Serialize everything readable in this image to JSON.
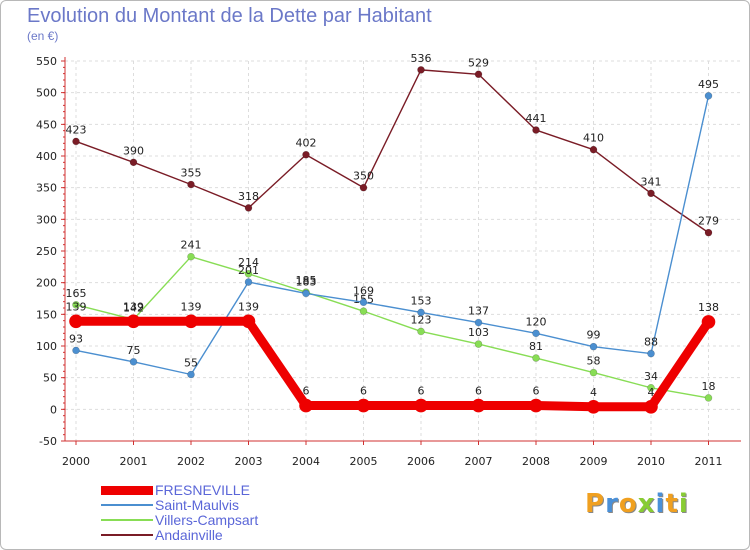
{
  "chart_data": {
    "type": "line",
    "title": "Evolution du Montant de la Dette par Habitant",
    "subtitle": "(en €)",
    "x": [
      "2000",
      "2001",
      "2002",
      "2003",
      "2004",
      "2005",
      "2006",
      "2007",
      "2008",
      "2009",
      "2010",
      "2011"
    ],
    "yticks": [
      -50,
      0,
      50,
      100,
      150,
      200,
      250,
      300,
      350,
      400,
      450,
      500,
      550
    ],
    "ylim": [
      -50,
      550
    ],
    "grid": true,
    "legend_position": "bottom-left",
    "series": [
      {
        "name": "Andainville",
        "color": "#7a1c26",
        "values": [
          423,
          390,
          355,
          318,
          402,
          350,
          536,
          529,
          441,
          410,
          341,
          279
        ]
      },
      {
        "name": "Villers-Campsart",
        "color": "#88dd55",
        "values": [
          165,
          142,
          241,
          214,
          185,
          155,
          123,
          103,
          81,
          58,
          34,
          18
        ]
      },
      {
        "name": "Saint-Maulvis",
        "color": "#4b8fd0",
        "values": [
          93,
          75,
          55,
          201,
          183,
          169,
          153,
          137,
          120,
          99,
          88,
          495
        ]
      },
      {
        "name": "FRESNEVILLE",
        "color": "#ee0000",
        "values": [
          139,
          139,
          139,
          139,
          6,
          6,
          6,
          6,
          6,
          4,
          4,
          138
        ]
      }
    ],
    "legend_order": [
      "FRESNEVILLE",
      "Saint-Maulvis",
      "Villers-Campsart",
      "Andainville"
    ]
  },
  "branding": {
    "logo_text": "Proxiti",
    "logo_colors": [
      "#f0a020",
      "#4a90d8",
      "#f0a020",
      "#88cc33",
      "#4a90d8",
      "#f0a020",
      "#88cc33"
    ]
  }
}
